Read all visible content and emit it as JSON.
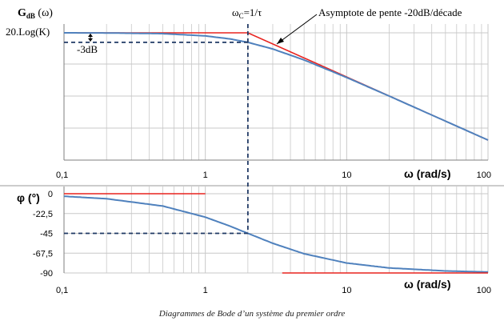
{
  "caption": "Diagrammes de Bode d’un système du premier ordre",
  "colors": {
    "curve": "#4f81bd",
    "asymptote": "#e8231f",
    "dashed": "#1f3864",
    "grid": "#c8c8c8",
    "axis": "#7f7f7f"
  },
  "chart_data": [
    {
      "type": "line",
      "plot": "gain",
      "ylabel_main": "G",
      "ylabel_sub": "dB",
      "ylabel_suffix": " (ω)",
      "xlabel": "ω (rad/s)",
      "xscale": "log",
      "xlim": [
        0.1,
        100
      ],
      "xticks": [
        "0,1",
        "1",
        "10",
        "100"
      ],
      "ylim": [
        -45,
        5
      ],
      "cutoff_label_main": "ω",
      "cutoff_label_sub": "C",
      "cutoff_label_suffix": "=1/τ",
      "cutoff_x": 2,
      "gain_level_label": "20.Log(K)",
      "minus3db_label": "-3dB",
      "asymptote_label": "Asymptote de pente -20dB/décade",
      "series": [
        {
          "kind": "curve",
          "x": [
            0.1,
            0.2,
            0.5,
            1,
            1.5,
            2,
            3,
            5,
            10,
            20,
            50,
            100
          ],
          "y": [
            0.0,
            -0.04,
            -0.26,
            -0.97,
            -1.94,
            -3.01,
            -5.12,
            -8.6,
            -14.15,
            -20.04,
            -27.97,
            -33.98
          ]
        },
        {
          "kind": "asymptote",
          "x": [
            0.1,
            2,
            100
          ],
          "y": [
            0,
            0,
            -33.98
          ]
        }
      ]
    },
    {
      "type": "line",
      "plot": "phase",
      "ylabel": "φ (°)",
      "xlabel": "ω (rad/s)",
      "xscale": "log",
      "xlim": [
        0.1,
        100
      ],
      "xticks": [
        "0,1",
        "1",
        "10",
        "100"
      ],
      "yticks": [
        "0",
        "-22,5",
        "-45",
        "-67,5",
        "-90"
      ],
      "ylim": [
        -90,
        0
      ],
      "series": [
        {
          "kind": "curve",
          "x": [
            0.1,
            0.2,
            0.5,
            1,
            1.5,
            2,
            3,
            5,
            10,
            20,
            50,
            100
          ],
          "y": [
            -2.9,
            -5.7,
            -14.0,
            -26.6,
            -36.9,
            -45.0,
            -56.3,
            -68.2,
            -78.7,
            -84.3,
            -87.7,
            -88.9
          ]
        },
        {
          "kind": "asymptote-low",
          "x": [
            0.1,
            1
          ],
          "y": [
            0,
            0
          ]
        },
        {
          "kind": "asymptote-high",
          "x": [
            3.5,
            100
          ],
          "y": [
            -90,
            -90
          ]
        }
      ]
    }
  ]
}
